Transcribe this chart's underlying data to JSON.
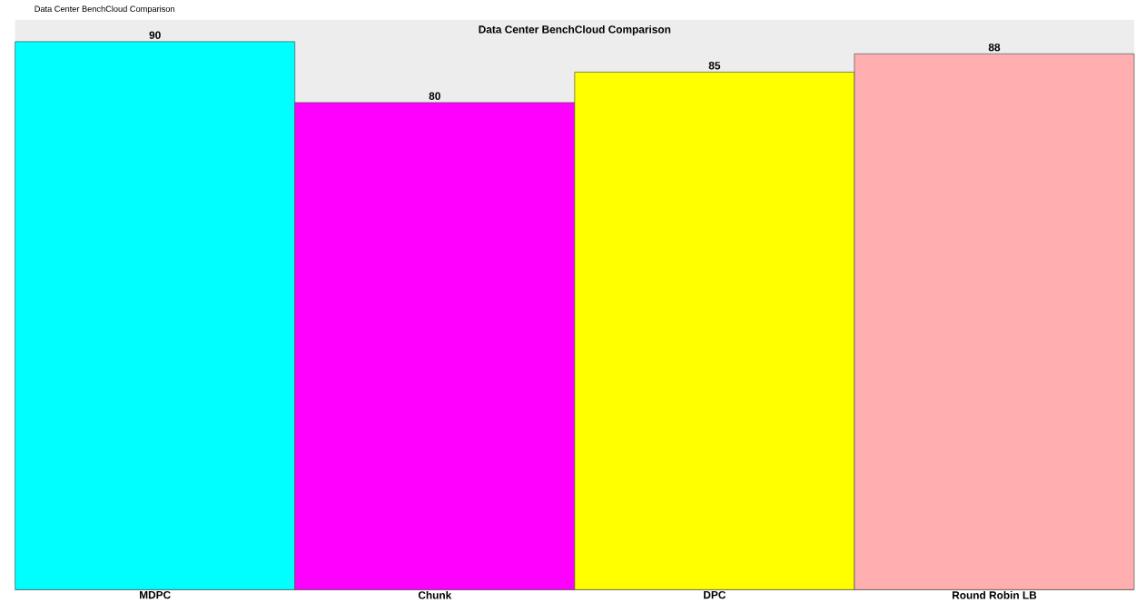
{
  "chart_data": {
    "type": "bar",
    "title": "Data Center BenchCloud Comparison",
    "categories": [
      "MDPC",
      "Chunk",
      "DPC",
      "Round Robin LB"
    ],
    "values": [
      90,
      80,
      85,
      88
    ],
    "colors": [
      "#00ffff",
      "#ff00ff",
      "#ffff00",
      "#ffafaf"
    ],
    "data_labels": true,
    "annotations": [
      "Data Center BenchCloud Comparison"
    ]
  }
}
